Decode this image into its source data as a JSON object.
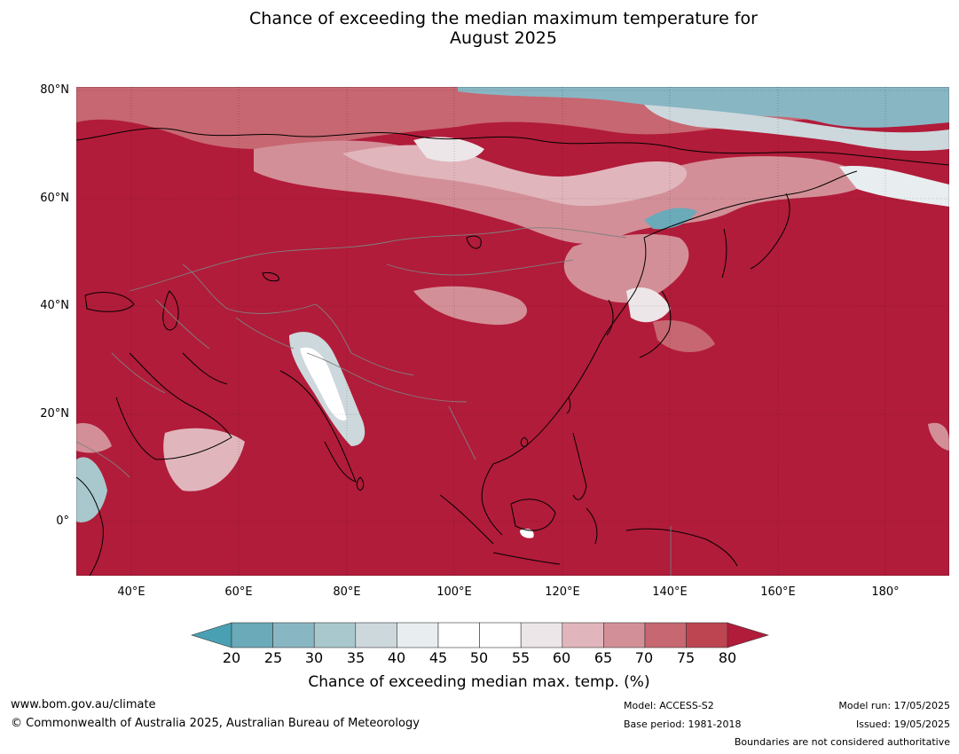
{
  "title": {
    "line1": "Chance of exceeding the median maximum temperature for",
    "line2": "August 2025"
  },
  "lat_labels": [
    "80°N",
    "60°N",
    "40°N",
    "20°N",
    "0°"
  ],
  "lon_labels": [
    "40°E",
    "60°E",
    "80°E",
    "100°E",
    "120°E",
    "140°E",
    "160°E",
    "180°"
  ],
  "colorbar": {
    "ticks": [
      "20",
      "25",
      "30",
      "35",
      "40",
      "45",
      "50",
      "55",
      "60",
      "65",
      "70",
      "75",
      "80"
    ],
    "colors": [
      "#6aaab9",
      "#89b6c3",
      "#a9c8cd",
      "#cdd8dc",
      "#e8eef0",
      "#ffffff",
      "#ffffff",
      "#ece6e8",
      "#e0b6bc",
      "#d38f97",
      "#c76771",
      "#bd4552"
    ],
    "under_color": "#4aa0b3",
    "over_color": "#b11c3a",
    "label": "Chance of exceeding median max. temp. (%)"
  },
  "map": {
    "dominant_color": "#b11c3a",
    "coast_color": "#000000",
    "border_color": "#808080"
  },
  "footer": {
    "url": "www.bom.gov.au/climate",
    "copyright": "© Commonwealth of Australia 2025, Australian Bureau of Meteorology",
    "model": "Model: ACCESS-S2",
    "base_period": "Base period: 1981-2018",
    "model_run": "Model run: 17/05/2025",
    "issued": "Issued: 19/05/2025",
    "disclaimer": "Boundaries are not considered authoritative"
  }
}
